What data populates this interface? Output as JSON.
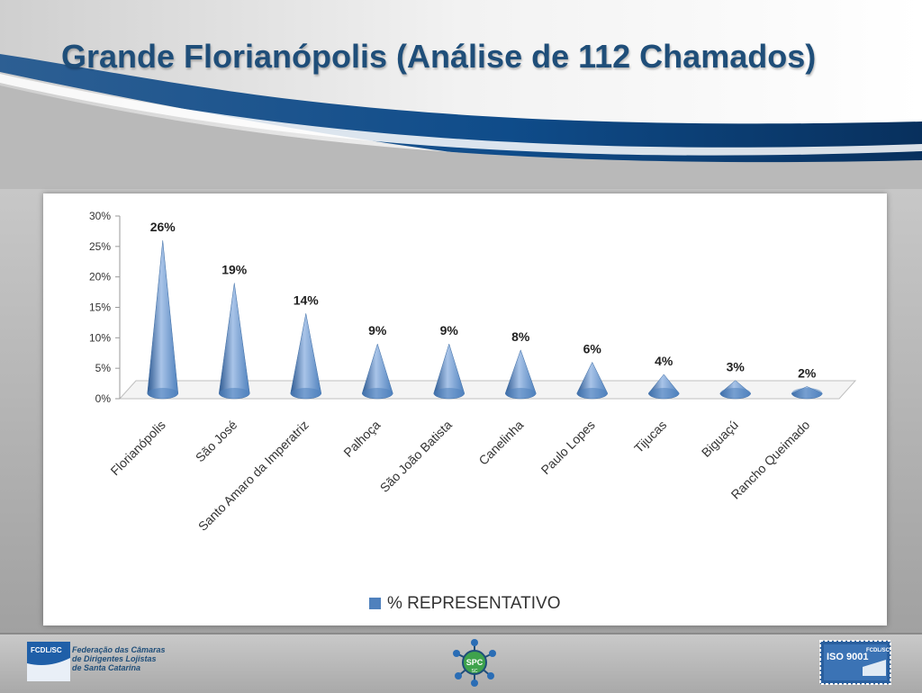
{
  "slide": {
    "title": "Grande Florianópolis (Análise de 112 Chamados)"
  },
  "chart_data": {
    "type": "bar",
    "bar_shape": "cone",
    "categories": [
      "Florianópolis",
      "São José",
      "Santo Amaro da Imperatriz",
      "Palhoça",
      "São João Batista",
      "Canelinha",
      "Paulo Lopes",
      "Tijucas",
      "Biguaçú",
      "Rancho Queimado"
    ],
    "series": [
      {
        "name": "% REPRESENTATIVO",
        "values": [
          26,
          19,
          14,
          9,
          9,
          8,
          6,
          4,
          3,
          2
        ],
        "data_labels": [
          "26%",
          "19%",
          "14%",
          "9%",
          "9%",
          "8%",
          "6%",
          "4%",
          "3%",
          "2%"
        ]
      }
    ],
    "ylim": [
      0,
      30
    ],
    "yticks": [
      "0%",
      "5%",
      "10%",
      "15%",
      "20%",
      "25%",
      "30%"
    ],
    "title": "",
    "xlabel": "",
    "ylabel": "",
    "legend_position": "bottom",
    "grid": false,
    "colors": {
      "bar": "#4f81bd",
      "bar_light": "#a9c4e8",
      "bar_dark": "#2c5890"
    }
  },
  "footer": {
    "fcdl_badge": "FCDL/SC",
    "fcdl_name_lines": [
      "Federação das Câmaras",
      "de Dirigentes Lojistas",
      "de Santa Catarina"
    ],
    "spc_logo": "SPC",
    "spc_logo_sub": "SC",
    "iso_badge": "ISO 9001",
    "iso_brand": "FCDL/SC"
  }
}
